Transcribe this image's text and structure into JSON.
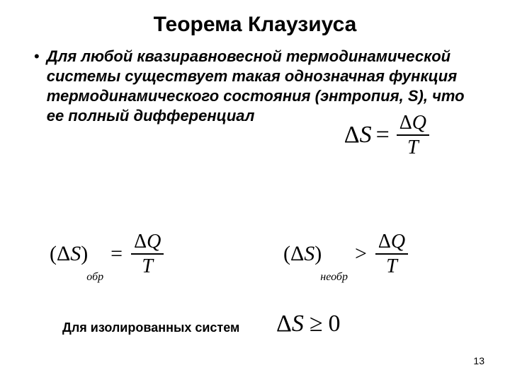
{
  "title": "Теорема Клаузиуса",
  "bullet": "Для любой квазиравновесной термодинамической системы существует такая однозначная функция термодинамического состояния (энтропия, S), что ее полный дифференциал",
  "eqA": {
    "lhs_delta": "Δ",
    "lhs_var": "S",
    "rel": "=",
    "num_delta": "Δ",
    "num_var": "Q",
    "den": "T"
  },
  "eqB": {
    "open": "(",
    "delta": "Δ",
    "var": "S",
    "close": ")",
    "sub": "обр",
    "rel": "=",
    "num_delta": "Δ",
    "num_var": "Q",
    "den": "T"
  },
  "eqC": {
    "open": "(",
    "delta": "Δ",
    "var": "S",
    "close": ")",
    "sub": "необр",
    "rel": ">",
    "num_delta": "Δ",
    "num_var": "Q",
    "den": "T"
  },
  "isolated_label": "Для изолированных систем",
  "eqD": {
    "delta": "Δ",
    "var": "S",
    "rel": "≥",
    "zero": "0"
  },
  "page_number": "13",
  "colors": {
    "text": "#000000",
    "bg": "#ffffff"
  }
}
